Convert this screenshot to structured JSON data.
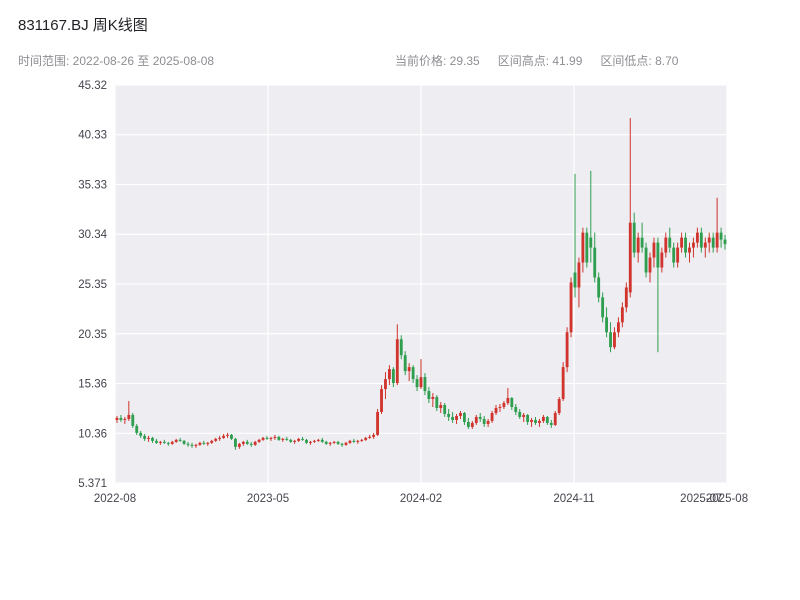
{
  "header": {
    "title": "831167.BJ 周K线图",
    "time_range_label": "时间范围: 2022-08-26 至 2025-08-08",
    "current_price_label": "当前价格: 29.35",
    "range_high_label": "区间高点: 41.99",
    "range_low_label": "区间低点: 8.70"
  },
  "chart_data": {
    "type": "candlestick",
    "title": "831167.BJ 周K线图",
    "period": "weekly",
    "time_range": "2022-08-26 至 2025-08-08",
    "current_price": 29.35,
    "range_high": 41.99,
    "range_low": 8.7,
    "y_ticks": [
      "45.32",
      "40.33",
      "35.33",
      "30.34",
      "25.35",
      "20.35",
      "15.36",
      "10.36",
      "5.371"
    ],
    "y_range": [
      5.371,
      45.32
    ],
    "x_ticks": [
      {
        "label": "2022-08",
        "pos": 0.0,
        "grid": true
      },
      {
        "label": "2023-05",
        "pos": 0.25,
        "grid": true
      },
      {
        "label": "2024-02",
        "pos": 0.5,
        "grid": true
      },
      {
        "label": "2024-11",
        "pos": 0.75,
        "grid": true
      },
      {
        "label": "2025-07",
        "pos": 0.958,
        "grid": false
      },
      {
        "label": "2025-08",
        "pos": 1.0,
        "grid": true
      }
    ],
    "colors": {
      "up": "#d0342c",
      "down": "#2f9e4f",
      "plot_bg": "#ededf2",
      "grid": "#ffffff",
      "axis_text": "#44444e",
      "border": "#d9d9e3"
    },
    "candles": [
      [
        11.7,
        12.1,
        11.4,
        11.9
      ],
      [
        11.9,
        12.2,
        11.5,
        11.7
      ],
      [
        11.7,
        12.0,
        11.3,
        11.8
      ],
      [
        11.8,
        13.6,
        11.6,
        12.2
      ],
      [
        12.2,
        12.4,
        10.9,
        11.1
      ],
      [
        11.1,
        11.3,
        10.2,
        10.4
      ],
      [
        10.4,
        10.6,
        9.9,
        10.1
      ],
      [
        10.1,
        10.3,
        9.6,
        9.8
      ],
      [
        9.8,
        10.1,
        9.5,
        9.9
      ],
      [
        9.9,
        10.0,
        9.4,
        9.6
      ],
      [
        9.6,
        9.8,
        9.3,
        9.4
      ],
      [
        9.4,
        9.6,
        9.2,
        9.5
      ],
      [
        9.5,
        9.7,
        9.3,
        9.4
      ],
      [
        9.4,
        9.5,
        9.1,
        9.3
      ],
      [
        9.3,
        9.6,
        9.2,
        9.5
      ],
      [
        9.5,
        9.8,
        9.4,
        9.7
      ],
      [
        9.7,
        9.9,
        9.5,
        9.6
      ],
      [
        9.6,
        9.7,
        9.2,
        9.3
      ],
      [
        9.3,
        9.5,
        9.0,
        9.2
      ],
      [
        9.2,
        9.4,
        8.9,
        9.1
      ],
      [
        9.1,
        9.3,
        8.9,
        9.2
      ],
      [
        9.2,
        9.5,
        9.1,
        9.4
      ],
      [
        9.4,
        9.6,
        9.2,
        9.3
      ],
      [
        9.3,
        9.5,
        9.1,
        9.4
      ],
      [
        9.4,
        9.7,
        9.3,
        9.6
      ],
      [
        9.6,
        9.9,
        9.5,
        9.8
      ],
      [
        9.8,
        10.1,
        9.6,
        9.9
      ],
      [
        9.9,
        10.3,
        9.8,
        10.1
      ],
      [
        10.1,
        10.4,
        9.9,
        10.2
      ],
      [
        10.2,
        10.3,
        9.7,
        9.8
      ],
      [
        9.8,
        9.9,
        8.7,
        9.0
      ],
      [
        9.0,
        9.4,
        8.8,
        9.3
      ],
      [
        9.3,
        9.6,
        9.1,
        9.5
      ],
      [
        9.5,
        9.7,
        9.2,
        9.3
      ],
      [
        9.3,
        9.5,
        9.0,
        9.2
      ],
      [
        9.2,
        9.6,
        9.1,
        9.5
      ],
      [
        9.5,
        9.8,
        9.4,
        9.7
      ],
      [
        9.7,
        10.0,
        9.6,
        9.9
      ],
      [
        9.9,
        10.1,
        9.7,
        9.8
      ],
      [
        9.8,
        10.0,
        9.6,
        9.9
      ],
      [
        9.9,
        10.2,
        9.7,
        10.0
      ],
      [
        10.0,
        10.1,
        9.6,
        9.7
      ],
      [
        9.7,
        9.9,
        9.5,
        9.8
      ],
      [
        9.8,
        10.0,
        9.6,
        9.7
      ],
      [
        9.7,
        9.8,
        9.4,
        9.5
      ],
      [
        9.5,
        9.7,
        9.3,
        9.6
      ],
      [
        9.6,
        9.9,
        9.5,
        9.8
      ],
      [
        9.8,
        10.0,
        9.6,
        9.7
      ],
      [
        9.7,
        9.8,
        9.3,
        9.4
      ],
      [
        9.4,
        9.6,
        9.2,
        9.5
      ],
      [
        9.5,
        9.7,
        9.4,
        9.6
      ],
      [
        9.6,
        9.8,
        9.5,
        9.7
      ],
      [
        9.7,
        9.9,
        9.4,
        9.5
      ],
      [
        9.5,
        9.6,
        9.2,
        9.3
      ],
      [
        9.3,
        9.5,
        9.1,
        9.4
      ],
      [
        9.4,
        9.6,
        9.3,
        9.5
      ],
      [
        9.5,
        9.6,
        9.2,
        9.3
      ],
      [
        9.3,
        9.4,
        9.0,
        9.2
      ],
      [
        9.2,
        9.5,
        9.1,
        9.4
      ],
      [
        9.4,
        9.7,
        9.3,
        9.6
      ],
      [
        9.6,
        9.8,
        9.4,
        9.5
      ],
      [
        9.5,
        9.7,
        9.3,
        9.6
      ],
      [
        9.6,
        9.8,
        9.5,
        9.7
      ],
      [
        9.7,
        10.0,
        9.6,
        9.9
      ],
      [
        9.9,
        10.2,
        9.8,
        10.0
      ],
      [
        10.0,
        10.4,
        9.8,
        10.2
      ],
      [
        10.2,
        12.8,
        10.1,
        12.5
      ],
      [
        12.5,
        15.2,
        12.3,
        14.8
      ],
      [
        14.8,
        16.5,
        13.8,
        15.8
      ],
      [
        15.8,
        17.2,
        15.2,
        16.8
      ],
      [
        16.8,
        17.0,
        15.0,
        15.4
      ],
      [
        15.4,
        21.3,
        15.2,
        19.8
      ],
      [
        19.8,
        20.2,
        17.8,
        18.2
      ],
      [
        18.2,
        18.6,
        16.2,
        16.6
      ],
      [
        16.6,
        17.4,
        15.6,
        17.0
      ],
      [
        17.0,
        17.2,
        15.4,
        15.8
      ],
      [
        15.8,
        16.2,
        14.6,
        15.0
      ],
      [
        15.0,
        17.8,
        14.8,
        16.0
      ],
      [
        16.0,
        16.4,
        14.2,
        14.6
      ],
      [
        14.6,
        15.0,
        13.4,
        13.8
      ],
      [
        13.8,
        14.4,
        13.0,
        14.0
      ],
      [
        14.0,
        14.2,
        12.6,
        12.9
      ],
      [
        12.9,
        13.5,
        12.4,
        13.2
      ],
      [
        13.2,
        13.4,
        12.0,
        12.3
      ],
      [
        12.3,
        12.8,
        11.6,
        12.0
      ],
      [
        12.0,
        12.5,
        11.4,
        11.7
      ],
      [
        11.7,
        12.3,
        11.3,
        12.1
      ],
      [
        12.1,
        12.6,
        11.8,
        12.4
      ],
      [
        12.4,
        12.5,
        11.2,
        11.5
      ],
      [
        11.5,
        11.9,
        10.8,
        11.0
      ],
      [
        11.0,
        11.6,
        10.8,
        11.4
      ],
      [
        11.4,
        12.2,
        11.2,
        12.0
      ],
      [
        12.0,
        12.4,
        11.5,
        11.8
      ],
      [
        11.8,
        12.1,
        11.0,
        11.3
      ],
      [
        11.3,
        11.8,
        11.0,
        11.6
      ],
      [
        11.6,
        12.6,
        11.4,
        12.4
      ],
      [
        12.4,
        13.2,
        12.2,
        12.9
      ],
      [
        12.9,
        13.3,
        12.5,
        13.0
      ],
      [
        13.0,
        13.6,
        12.8,
        13.4
      ],
      [
        13.4,
        14.9,
        13.2,
        13.9
      ],
      [
        13.9,
        14.0,
        12.7,
        13.0
      ],
      [
        13.0,
        13.3,
        12.2,
        12.5
      ],
      [
        12.5,
        12.8,
        11.8,
        12.0
      ],
      [
        12.0,
        12.4,
        11.5,
        12.2
      ],
      [
        12.2,
        12.3,
        11.2,
        11.5
      ],
      [
        11.5,
        11.9,
        11.0,
        11.7
      ],
      [
        11.7,
        12.0,
        11.2,
        11.4
      ],
      [
        11.4,
        11.8,
        11.0,
        11.6
      ],
      [
        11.6,
        12.2,
        11.4,
        12.0
      ],
      [
        12.0,
        12.1,
        11.2,
        11.4
      ],
      [
        11.4,
        11.7,
        10.9,
        11.2
      ],
      [
        11.2,
        12.6,
        11.1,
        12.4
      ],
      [
        12.4,
        14.0,
        12.2,
        13.8
      ],
      [
        13.8,
        17.5,
        13.6,
        17.0
      ],
      [
        17.0,
        21.0,
        16.5,
        20.5
      ],
      [
        20.5,
        26.0,
        20.0,
        25.5
      ],
      [
        26.5,
        36.4,
        24.0,
        25.0
      ],
      [
        25.0,
        28.0,
        23.0,
        27.5
      ],
      [
        27.5,
        31.0,
        26.5,
        30.5
      ],
      [
        30.5,
        31.0,
        27.0,
        27.5
      ],
      [
        30.0,
        36.7,
        27.5,
        29.0
      ],
      [
        29.0,
        30.5,
        25.5,
        26.0
      ],
      [
        26.0,
        26.5,
        23.5,
        24.0
      ],
      [
        24.0,
        24.5,
        21.5,
        22.0
      ],
      [
        22.0,
        23.0,
        20.0,
        20.5
      ],
      [
        20.5,
        21.5,
        18.5,
        19.0
      ],
      [
        19.0,
        21.0,
        18.8,
        20.5
      ],
      [
        20.5,
        22.0,
        20.0,
        21.5
      ],
      [
        21.5,
        23.5,
        21.0,
        23.0
      ],
      [
        23.0,
        25.5,
        22.5,
        25.0
      ],
      [
        24.5,
        41.99,
        24.0,
        31.5
      ],
      [
        31.5,
        32.5,
        28.0,
        28.5
      ],
      [
        28.5,
        30.5,
        27.5,
        30.0
      ],
      [
        30.0,
        31.5,
        28.5,
        29.0
      ],
      [
        29.0,
        29.5,
        26.0,
        26.5
      ],
      [
        26.5,
        28.5,
        25.5,
        28.0
      ],
      [
        28.0,
        30.0,
        27.0,
        29.5
      ],
      [
        29.5,
        30.0,
        18.5,
        27.0
      ],
      [
        27.0,
        29.0,
        26.5,
        28.5
      ],
      [
        28.5,
        30.5,
        28.0,
        30.0
      ],
      [
        30.0,
        31.0,
        28.5,
        29.0
      ],
      [
        29.0,
        29.5,
        27.0,
        27.5
      ],
      [
        27.5,
        29.5,
        27.0,
        29.0
      ],
      [
        29.0,
        30.5,
        28.5,
        30.0
      ],
      [
        30.0,
        30.5,
        28.0,
        28.5
      ],
      [
        28.5,
        29.5,
        27.5,
        29.0
      ],
      [
        29.0,
        30.0,
        28.0,
        29.5
      ],
      [
        29.5,
        31.0,
        29.0,
        30.5
      ],
      [
        30.5,
        31.0,
        28.5,
        29.0
      ],
      [
        29.0,
        30.0,
        28.0,
        29.5
      ],
      [
        29.5,
        30.5,
        28.5,
        30.0
      ],
      [
        30.0,
        30.5,
        28.5,
        29.0
      ],
      [
        29.0,
        34.0,
        28.5,
        30.5
      ],
      [
        30.5,
        31.0,
        29.0,
        29.8
      ],
      [
        29.8,
        30.3,
        28.8,
        29.35
      ]
    ]
  }
}
